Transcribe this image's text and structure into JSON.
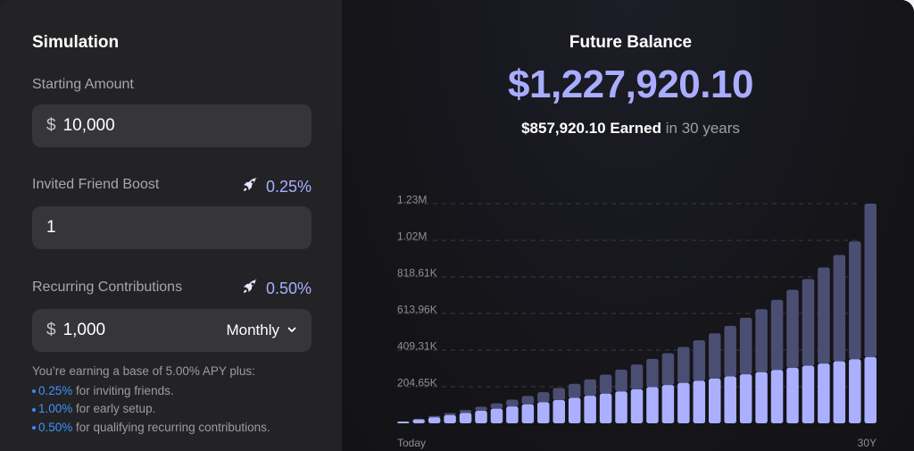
{
  "left": {
    "title": "Simulation",
    "starting": {
      "label": "Starting Amount",
      "prefix": "$",
      "value": "10,000"
    },
    "friend": {
      "label": "Invited Friend Boost",
      "boost": "0.25%",
      "value": "1",
      "icon": "rocket-icon"
    },
    "recurring": {
      "label": "Recurring Contributions",
      "boost": "0.50%",
      "prefix": "$",
      "value": "1,000",
      "frequency": "Monthly",
      "icon": "rocket-icon"
    },
    "note": {
      "intro": "You’re earning a base of 5.00% APY plus:",
      "items": [
        {
          "pct": "0.25%",
          "text": " for inviting friends."
        },
        {
          "pct": "1.00%",
          "text": " for early setup."
        },
        {
          "pct": "0.50%",
          "text": " for qualifying recurring contributions."
        }
      ]
    }
  },
  "right": {
    "title": "Future Balance",
    "amount": "$1,227,920.10",
    "earned_amount": "$857,920.10",
    "earned_label": "Earned",
    "earned_suffix": "in 30 years"
  },
  "colors": {
    "accent": "#a9adff",
    "bar_top": "#4b4e73",
    "bar_base": "#aab0ff",
    "link_blue": "#3d92ff"
  },
  "chart_data": {
    "type": "bar",
    "stacked": true,
    "x_start_label": "Today",
    "x_end_label": "30Y",
    "y_ticks": [
      "1.23M",
      "1.02M",
      "818.61K",
      "613.96K",
      "409.31K",
      "204.65K"
    ],
    "y_tick_values": [
      1228000,
      1023000,
      818610,
      613960,
      409310,
      204650
    ],
    "ylim": [
      0,
      1228000
    ],
    "grid": true,
    "series": [
      {
        "values": [
          10000,
          22000,
          34000,
          46000,
          58000,
          70000,
          82000,
          94000,
          106000,
          118000,
          130000,
          142000,
          154000,
          166000,
          178000,
          190000,
          202000,
          214000,
          226000,
          238000,
          250000,
          262000,
          274000,
          286000,
          298000,
          310000,
          322000,
          334000,
          346000,
          358000,
          370000
        ]
      },
      {
        "values": [
          0,
          3000,
          7000,
          11000,
          16000,
          23000,
          30000,
          38000,
          47000,
          56000,
          67000,
          79000,
          92000,
          106000,
          122000,
          139000,
          158000,
          178000,
          201000,
          226000,
          253000,
          283000,
          316000,
          352000,
          392000,
          436000,
          484000,
          537000,
          595000,
          659000,
          858000
        ]
      }
    ]
  }
}
